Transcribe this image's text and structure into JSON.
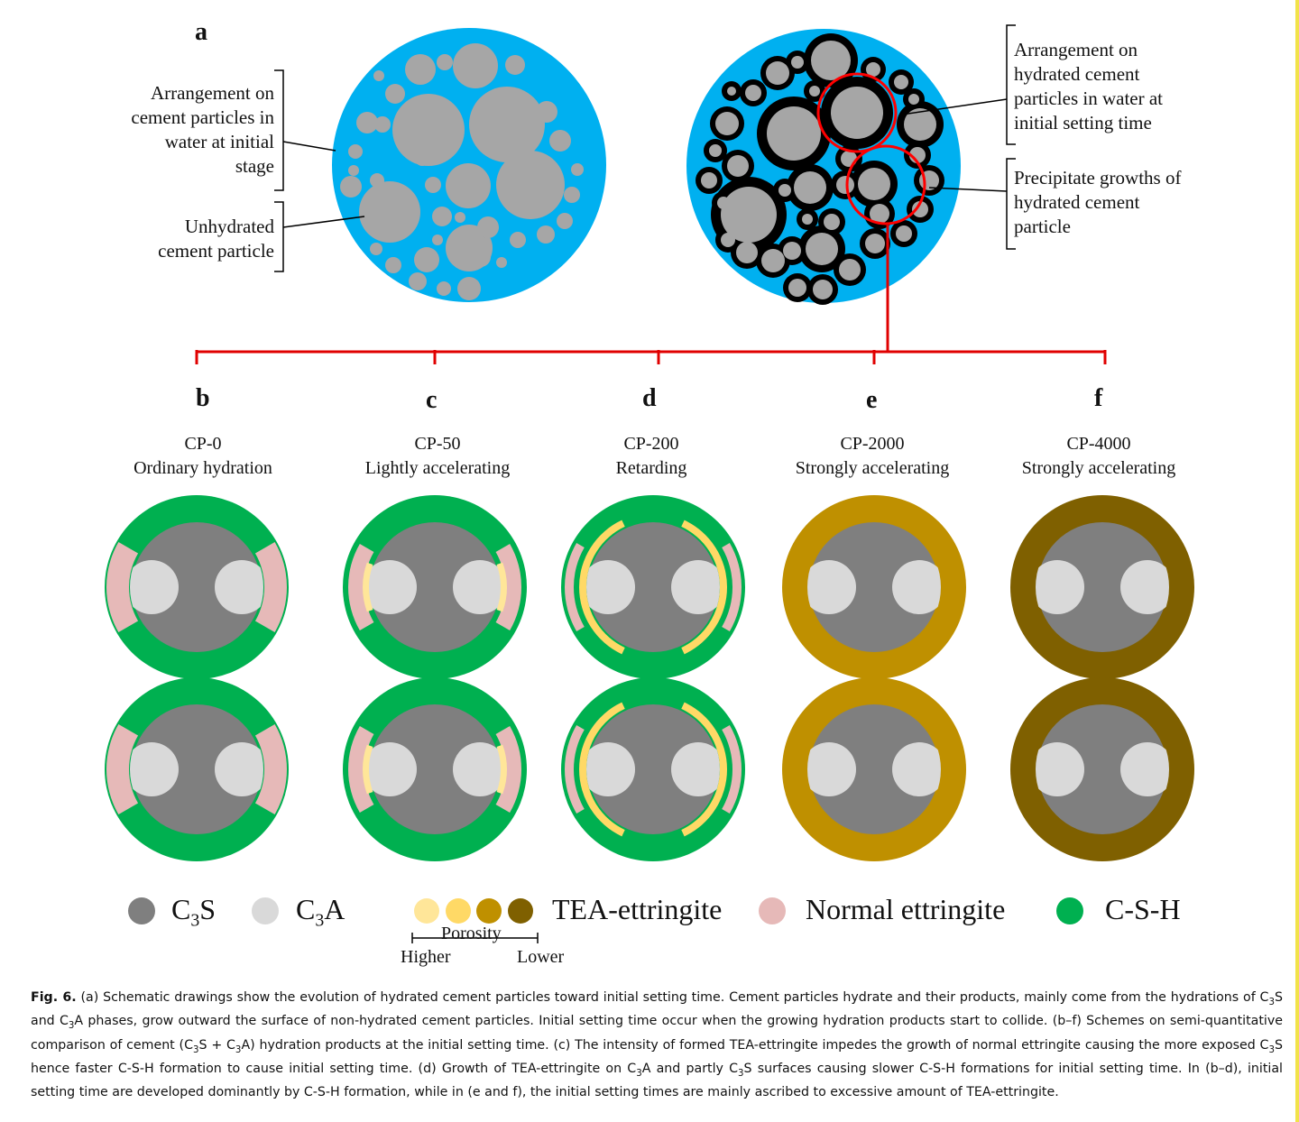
{
  "panel_a": {
    "letter": "a",
    "left_labels": {
      "arrangement": [
        "Arrangement on",
        "cement particles in",
        "water at initial",
        "stage"
      ],
      "unhydrated": [
        "Unhydrated",
        "cement particle"
      ]
    },
    "right_labels": {
      "arrangement": [
        "Arrangement on",
        "hydrated cement",
        "particles in water at",
        "initial  setting time"
      ],
      "precipitate": [
        "Precipitate growths of",
        "hydrated cement",
        "particle"
      ]
    }
  },
  "panels": [
    {
      "letter": "b",
      "title1": "CP-0",
      "title2": "Ordinary hydration"
    },
    {
      "letter": "c",
      "title1": "CP-50",
      "title2": "Lightly accelerating"
    },
    {
      "letter": "d",
      "title1": "CP-200",
      "title2": "Retarding"
    },
    {
      "letter": "e",
      "title1": "CP-2000",
      "title2": "Strongly accelerating"
    },
    {
      "letter": "f",
      "title1": "CP-4000",
      "title2": "Strongly accelerating"
    }
  ],
  "legend": {
    "c3s": "C3S",
    "c3a": "C3A",
    "tea": "TEA-ettringite",
    "normal": "Normal ettringite",
    "csh": "C-S-H",
    "porosity": "Porosity",
    "higher": "Higher",
    "lower": "Lower"
  },
  "colors": {
    "water": "#00b0f0",
    "particle": "#a6a6a6",
    "c3s": "#7f7f7f",
    "c3a": "#d9d9d9",
    "csh": "#00b050",
    "normal_ettringite": "#e6b9b8",
    "tea1": "#ffe699",
    "tea2": "#ffd966",
    "tea3": "#bf9000",
    "tea4": "#7f6000",
    "connector": "#e00000"
  },
  "caption": {
    "label": "Fig. 6.",
    "text": "(a) Schematic drawings show the evolution of hydrated cement particles toward initial setting time. Cement particles hydrate and their products, mainly come from the hydrations of C3S and C3A phases, grow outward the surface of non-hydrated cement particles. Initial setting time occur when the growing hydration products start to collide. (b–f) Schemes on semi-quantitative comparison of cement (C3S + C3A) hydration products at the initial setting time. (c) The intensity of formed TEA-ettringite impedes the growth of normal ettringite causing the more exposed C3S hence faster C-S-H formation to cause initial setting time. (d) Growth of TEA-ettringite on C3A and partly C3S surfaces causing slower C-S-H formations for initial setting time. In (b–d), initial setting time are developed dominantly by C-S-H formation, while in (e and f), the initial setting times are mainly ascribed to excessive amount of TEA-ettringite."
  }
}
